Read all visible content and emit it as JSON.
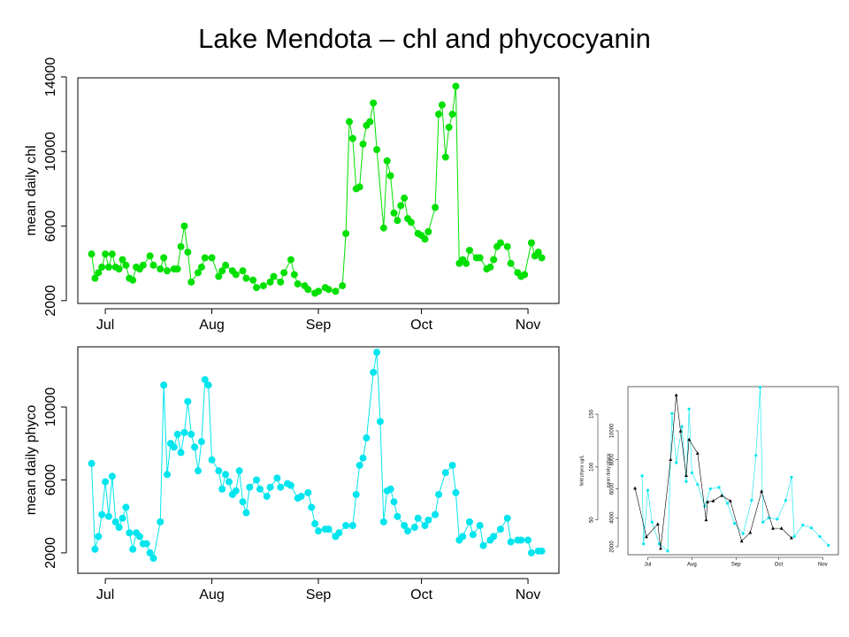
{
  "title": "Lake Mendota – chl and phycocyanin",
  "chart_data": [
    {
      "type": "line",
      "ylabel": "mean daily chl",
      "color": "#00e000",
      "marker": "circle",
      "xlim": [
        -8,
        132
      ],
      "xticks": [
        {
          "value": 0,
          "label": "Jul"
        },
        {
          "value": 31,
          "label": "Aug"
        },
        {
          "value": 62,
          "label": "Sep"
        },
        {
          "value": 92,
          "label": "Oct"
        },
        {
          "value": 123,
          "label": "Nov"
        }
      ],
      "ylim": [
        1850,
        13950
      ],
      "yticks": [
        2000,
        6000,
        10000,
        14000
      ],
      "x": [
        -4,
        -3,
        -2,
        -1,
        0,
        1,
        2,
        3,
        4,
        5,
        6,
        7,
        8,
        9,
        10,
        11,
        13,
        14,
        16,
        17,
        18,
        20,
        21,
        22,
        23,
        24,
        25,
        27,
        28,
        29,
        31,
        33,
        34,
        35,
        37,
        38,
        40,
        41,
        43,
        44,
        46,
        48,
        49,
        51,
        52,
        54,
        55,
        56,
        58,
        59,
        61,
        62,
        64,
        65,
        67,
        69,
        70,
        71,
        72,
        73,
        74,
        75,
        76,
        77,
        78,
        79,
        81,
        82,
        83,
        84,
        85,
        86,
        87,
        88,
        89,
        91,
        92,
        93,
        94,
        96,
        97,
        98,
        99,
        100,
        101,
        102,
        103,
        104,
        105,
        106,
        108,
        109,
        111,
        112,
        113,
        114,
        115,
        117,
        118,
        120,
        121,
        122,
        124,
        125,
        126,
        127
      ],
      "values": [
        4500,
        3200,
        3500,
        3800,
        4500,
        3800,
        4500,
        3800,
        3700,
        4200,
        3900,
        3200,
        3100,
        3800,
        3700,
        3900,
        4400,
        3900,
        3700,
        4300,
        3600,
        3700,
        3700,
        4900,
        6000,
        4600,
        3000,
        3500,
        3800,
        4300,
        4300,
        3300,
        3600,
        3900,
        3600,
        3400,
        3600,
        3200,
        3100,
        2700,
        2800,
        3000,
        3300,
        3000,
        3500,
        4200,
        3400,
        2900,
        2800,
        2600,
        2400,
        2500,
        2700,
        2600,
        2500,
        2800,
        5600,
        11600,
        10700,
        8000,
        8100,
        10400,
        11400,
        11600,
        12600,
        10100,
        5900,
        9500,
        8700,
        6700,
        6300,
        7100,
        7500,
        6400,
        6200,
        5600,
        5500,
        5300,
        5700,
        7000,
        12000,
        12500,
        9700,
        11300,
        12000,
        13500,
        4000,
        4200,
        4000,
        4700,
        4300,
        4300,
        3700,
        3800,
        4200,
        4900,
        5100,
        4900,
        4000,
        3500,
        3300,
        3400,
        5100,
        4400,
        4600,
        4300
      ]
    },
    {
      "type": "line",
      "ylabel": "mean daily phyco",
      "color": "#00e5ee",
      "marker": "circle",
      "xlim": [
        -8,
        132
      ],
      "xticks": [
        {
          "value": 0,
          "label": "Jul"
        },
        {
          "value": 31,
          "label": "Aug"
        },
        {
          "value": 62,
          "label": "Sep"
        },
        {
          "value": 92,
          "label": "Oct"
        },
        {
          "value": 123,
          "label": "Nov"
        }
      ],
      "ylim": [
        880,
        13300
      ],
      "yticks": [
        2000,
        6000,
        10000
      ],
      "x": [
        -4,
        -3,
        -2,
        -1,
        0,
        1,
        2,
        3,
        4,
        5,
        6,
        7,
        8,
        9,
        10,
        11,
        12,
        13,
        14,
        16,
        17,
        18,
        19,
        20,
        21,
        22,
        23,
        24,
        25,
        26,
        27,
        28,
        29,
        30,
        31,
        33,
        34,
        35,
        36,
        37,
        38,
        39,
        40,
        41,
        42,
        44,
        45,
        47,
        48,
        50,
        51,
        53,
        54,
        56,
        57,
        59,
        60,
        61,
        62,
        64,
        65,
        67,
        68,
        70,
        72,
        73,
        74,
        75,
        76,
        78,
        79,
        80,
        81,
        82,
        83,
        84,
        85,
        87,
        88,
        90,
        91,
        93,
        94,
        96,
        97,
        99,
        101,
        102,
        103,
        104,
        106,
        107,
        109,
        110,
        112,
        113,
        115,
        117,
        118,
        120,
        121,
        123,
        124,
        126,
        127
      ],
      "values": [
        6900,
        2200,
        2900,
        4100,
        5900,
        4000,
        6200,
        3700,
        3400,
        3900,
        4500,
        3100,
        2200,
        3100,
        2900,
        2500,
        2500,
        2000,
        1700,
        3700,
        11200,
        6300,
        8000,
        7800,
        8500,
        7500,
        8600,
        10300,
        8500,
        7800,
        6500,
        8100,
        11500,
        11200,
        7100,
        6500,
        5500,
        6300,
        5900,
        5200,
        5400,
        6500,
        4800,
        4200,
        5600,
        6000,
        5500,
        5100,
        5600,
        6100,
        5600,
        5800,
        5700,
        5000,
        5100,
        5300,
        4500,
        3600,
        3200,
        3300,
        3300,
        2900,
        3100,
        3500,
        3500,
        5200,
        6800,
        7200,
        8300,
        11900,
        13000,
        9200,
        3700,
        5400,
        5500,
        4800,
        4000,
        3500,
        3200,
        3400,
        3900,
        3500,
        3800,
        4100,
        5200,
        6400,
        6800,
        5300,
        2700,
        2900,
        3700,
        3000,
        3500,
        2400,
        2700,
        2900,
        3300,
        3900,
        2600,
        2700,
        2700,
        2700,
        2000,
        2100,
        2100
      ]
    },
    {
      "type": "line",
      "ylabel": "field phyco ug/L",
      "y2label": "mean daily phyco",
      "xlim": [
        -14,
        134
      ],
      "xticks": [
        {
          "value": 0,
          "label": "Jul"
        },
        {
          "value": 31,
          "label": "Aug"
        },
        {
          "value": 62,
          "label": "Sep"
        },
        {
          "value": 92,
          "label": "Oct"
        },
        {
          "value": 123,
          "label": "Nov"
        }
      ],
      "ylim": [
        17,
        176
      ],
      "yticks": [
        50,
        100,
        150
      ],
      "y2lim": [
        1450,
        13050
      ],
      "y2ticks": [
        2000,
        4000,
        6000,
        8000,
        10000
      ],
      "series": [
        {
          "color": "#00e5ee",
          "axis": "y2",
          "marker": "circle",
          "x": [
            -4,
            -3,
            0,
            3,
            8,
            14,
            17,
            20,
            24,
            27,
            29,
            31,
            35,
            40,
            44,
            50,
            56,
            61,
            67,
            73,
            76,
            79,
            81,
            85,
            91,
            97,
            101,
            103,
            109,
            115,
            121,
            127
          ],
          "values": [
            6900,
            2200,
            5900,
            3700,
            2200,
            1700,
            11200,
            7800,
            10300,
            6500,
            11500,
            7100,
            6300,
            4800,
            6000,
            6100,
            5000,
            3600,
            2900,
            5200,
            8300,
            13000,
            3700,
            4000,
            3900,
            5200,
            6800,
            2700,
            3500,
            3300,
            2700,
            2100
          ]
        },
        {
          "color": "#000000",
          "marker": "triangle",
          "x": [
            -9,
            -1,
            7,
            9,
            16,
            20,
            23,
            27,
            29,
            35,
            41,
            42,
            46,
            52,
            58,
            66,
            72,
            80,
            88,
            94,
            101
          ],
          "values": [
            80,
            34,
            46,
            23,
            107,
            168,
            134,
            92,
            126,
            113,
            50,
            67,
            68,
            73,
            68,
            30,
            38,
            77,
            42,
            42,
            33
          ]
        }
      ]
    }
  ]
}
